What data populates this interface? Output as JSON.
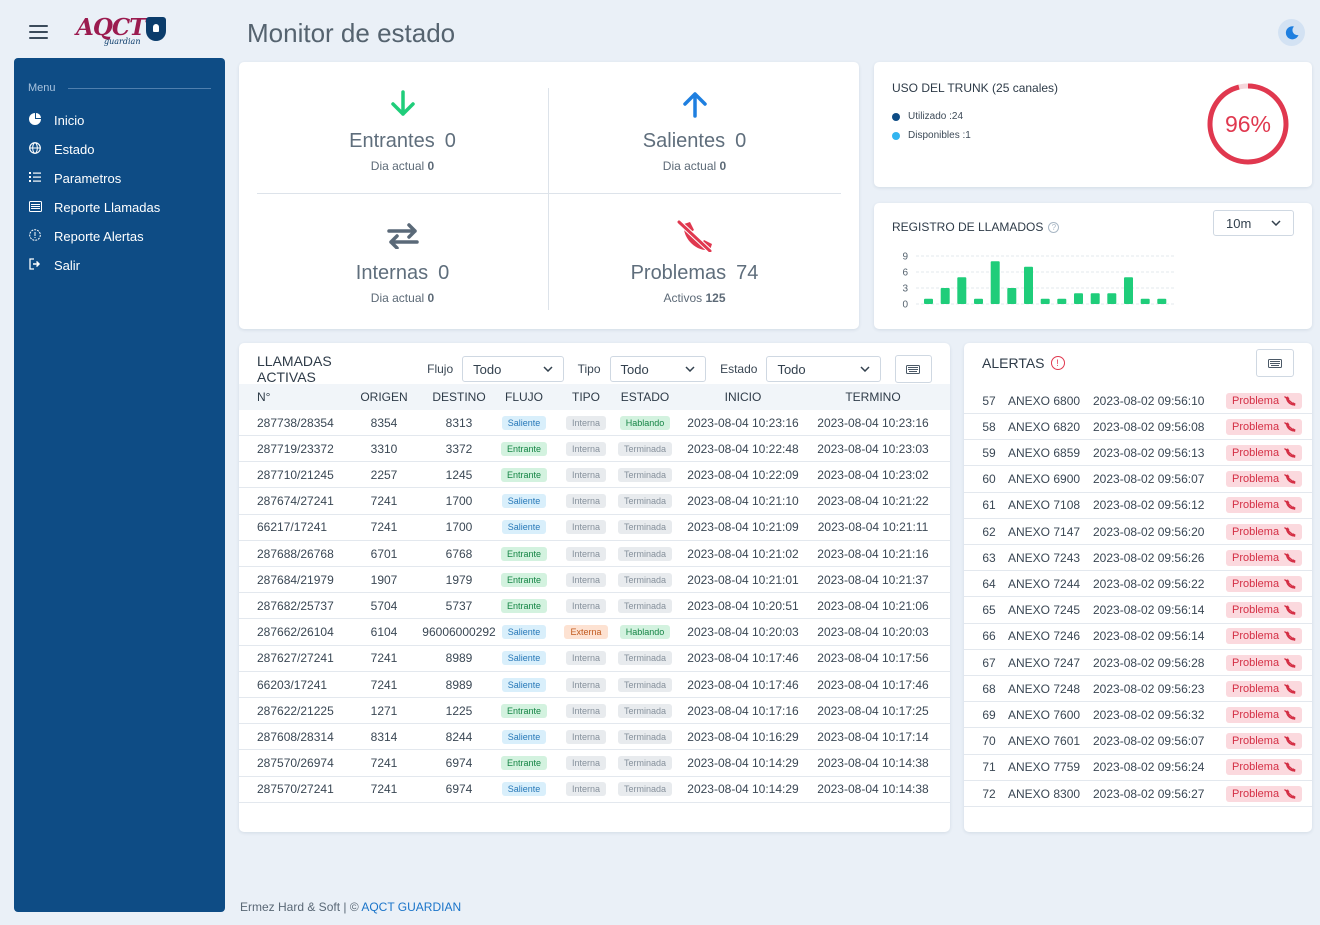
{
  "app": {
    "title": "Monitor de estado",
    "logo_text": "AQCT",
    "logo_sub": "guardian"
  },
  "sidebar": {
    "menu_label": "Menu",
    "items": [
      {
        "label": "Inicio",
        "icon": "pie-chart-icon"
      },
      {
        "label": "Estado",
        "icon": "globe-icon"
      },
      {
        "label": "Parametros",
        "icon": "list-check-icon"
      },
      {
        "label": "Reporte Llamadas",
        "icon": "report-icon"
      },
      {
        "label": "Reporte Alertas",
        "icon": "alert-circle-icon"
      },
      {
        "label": "Salir",
        "icon": "sign-out-icon"
      }
    ]
  },
  "stats": {
    "entrantes": {
      "label": "Entrantes",
      "value": "0",
      "sub_label": "Dia actual",
      "sub_value": "0",
      "color": "#1fcd7a"
    },
    "salientes": {
      "label": "Salientes",
      "value": "0",
      "sub_label": "Dia actual",
      "sub_value": "0",
      "color": "#1e7fe0"
    },
    "internas": {
      "label": "Internas",
      "value": "0",
      "sub_label": "Dia actual",
      "sub_value": "0",
      "color": "#5a6978"
    },
    "problemas": {
      "label": "Problemas",
      "value": "74",
      "sub_label": "Activos",
      "sub_value": "125",
      "color": "#e0384f"
    }
  },
  "trunk": {
    "title": "USO DEL TRUNK (25 canales)",
    "used_label": "Utilizado :24",
    "free_label": "Disponibles :1",
    "percent_label": "96%",
    "percent": 96,
    "used_color": "#0e4c85",
    "free_color": "#33b5f0",
    "gauge_color": "#e0384f"
  },
  "registro": {
    "title": "REGISTRO DE LLAMADOS",
    "range": "10m"
  },
  "chart_data": {
    "type": "bar",
    "title": "REGISTRO DE LLAMADOS",
    "xlabel": "",
    "ylabel": "",
    "ylim": [
      0,
      9
    ],
    "yticks": [
      0,
      3,
      6,
      9
    ],
    "grid": true,
    "values": [
      1,
      3,
      5,
      1,
      8,
      3,
      7,
      1,
      1,
      2,
      2,
      2,
      5,
      1,
      1
    ],
    "color": "#1fcd7a"
  },
  "calls": {
    "title": "LLAMADAS ACTIVAS",
    "filters": [
      {
        "label": "Flujo",
        "value": "Todo"
      },
      {
        "label": "Tipo",
        "value": "Todo"
      },
      {
        "label": "Estado",
        "value": "Todo"
      }
    ],
    "columns": [
      "N°",
      "ORIGEN",
      "DESTINO",
      "FLUJO",
      "TIPO",
      "ESTADO",
      "INICIO",
      "TERMINO"
    ],
    "rows": [
      [
        "287738/28354",
        "8354",
        "8313",
        "Saliente",
        "Interna",
        "Hablando",
        "2023-08-04 10:23:16",
        "2023-08-04 10:23:16"
      ],
      [
        "287719/23372",
        "3310",
        "3372",
        "Entrante",
        "Interna",
        "Terminada",
        "2023-08-04 10:22:48",
        "2023-08-04 10:23:03"
      ],
      [
        "287710/21245",
        "2257",
        "1245",
        "Entrante",
        "Interna",
        "Terminada",
        "2023-08-04 10:22:09",
        "2023-08-04 10:23:02"
      ],
      [
        "287674/27241",
        "7241",
        "1700",
        "Saliente",
        "Interna",
        "Terminada",
        "2023-08-04 10:21:10",
        "2023-08-04 10:21:22"
      ],
      [
        "66217/17241",
        "7241",
        "1700",
        "Saliente",
        "Interna",
        "Terminada",
        "2023-08-04 10:21:09",
        "2023-08-04 10:21:11"
      ],
      [
        "287688/26768",
        "6701",
        "6768",
        "Entrante",
        "Interna",
        "Terminada",
        "2023-08-04 10:21:02",
        "2023-08-04 10:21:16"
      ],
      [
        "287684/21979",
        "1907",
        "1979",
        "Entrante",
        "Interna",
        "Terminada",
        "2023-08-04 10:21:01",
        "2023-08-04 10:21:37"
      ],
      [
        "287682/25737",
        "5704",
        "5737",
        "Entrante",
        "Interna",
        "Terminada",
        "2023-08-04 10:20:51",
        "2023-08-04 10:21:06"
      ],
      [
        "287662/26104",
        "6104",
        "96006000292",
        "Saliente",
        "Externa",
        "Hablando",
        "2023-08-04 10:20:03",
        "2023-08-04 10:20:03"
      ],
      [
        "287627/27241",
        "7241",
        "8989",
        "Saliente",
        "Interna",
        "Terminada",
        "2023-08-04 10:17:46",
        "2023-08-04 10:17:56"
      ],
      [
        "66203/17241",
        "7241",
        "8989",
        "Saliente",
        "Interna",
        "Terminada",
        "2023-08-04 10:17:46",
        "2023-08-04 10:17:46"
      ],
      [
        "287622/21225",
        "1271",
        "1225",
        "Entrante",
        "Interna",
        "Terminada",
        "2023-08-04 10:17:16",
        "2023-08-04 10:17:25"
      ],
      [
        "287608/28314",
        "8314",
        "8244",
        "Saliente",
        "Interna",
        "Terminada",
        "2023-08-04 10:16:29",
        "2023-08-04 10:17:14"
      ],
      [
        "287570/26974",
        "7241",
        "6974",
        "Entrante",
        "Interna",
        "Terminada",
        "2023-08-04 10:14:29",
        "2023-08-04 10:14:38"
      ],
      [
        "287570/27241",
        "7241",
        "6974",
        "Saliente",
        "Interna",
        "Terminada",
        "2023-08-04 10:14:29",
        "2023-08-04 10:14:38"
      ]
    ]
  },
  "alerts": {
    "title": "ALERTAS",
    "badge_label": "Problema",
    "rows": [
      [
        "57",
        "ANEXO 6800",
        "2023-08-02 09:56:10"
      ],
      [
        "58",
        "ANEXO 6820",
        "2023-08-02 09:56:08"
      ],
      [
        "59",
        "ANEXO 6859",
        "2023-08-02 09:56:13"
      ],
      [
        "60",
        "ANEXO 6900",
        "2023-08-02 09:56:07"
      ],
      [
        "61",
        "ANEXO 7108",
        "2023-08-02 09:56:12"
      ],
      [
        "62",
        "ANEXO 7147",
        "2023-08-02 09:56:20"
      ],
      [
        "63",
        "ANEXO 7243",
        "2023-08-02 09:56:26"
      ],
      [
        "64",
        "ANEXO 7244",
        "2023-08-02 09:56:22"
      ],
      [
        "65",
        "ANEXO 7245",
        "2023-08-02 09:56:14"
      ],
      [
        "66",
        "ANEXO 7246",
        "2023-08-02 09:56:14"
      ],
      [
        "67",
        "ANEXO 7247",
        "2023-08-02 09:56:28"
      ],
      [
        "68",
        "ANEXO 7248",
        "2023-08-02 09:56:23"
      ],
      [
        "69",
        "ANEXO 7600",
        "2023-08-02 09:56:32"
      ],
      [
        "70",
        "ANEXO 7601",
        "2023-08-02 09:56:07"
      ],
      [
        "71",
        "ANEXO 7759",
        "2023-08-02 09:56:24"
      ],
      [
        "72",
        "ANEXO 8300",
        "2023-08-02 09:56:27"
      ]
    ]
  },
  "footer": {
    "text": "Ermez Hard & Soft | © ",
    "link": "AQCT GUARDIAN"
  }
}
